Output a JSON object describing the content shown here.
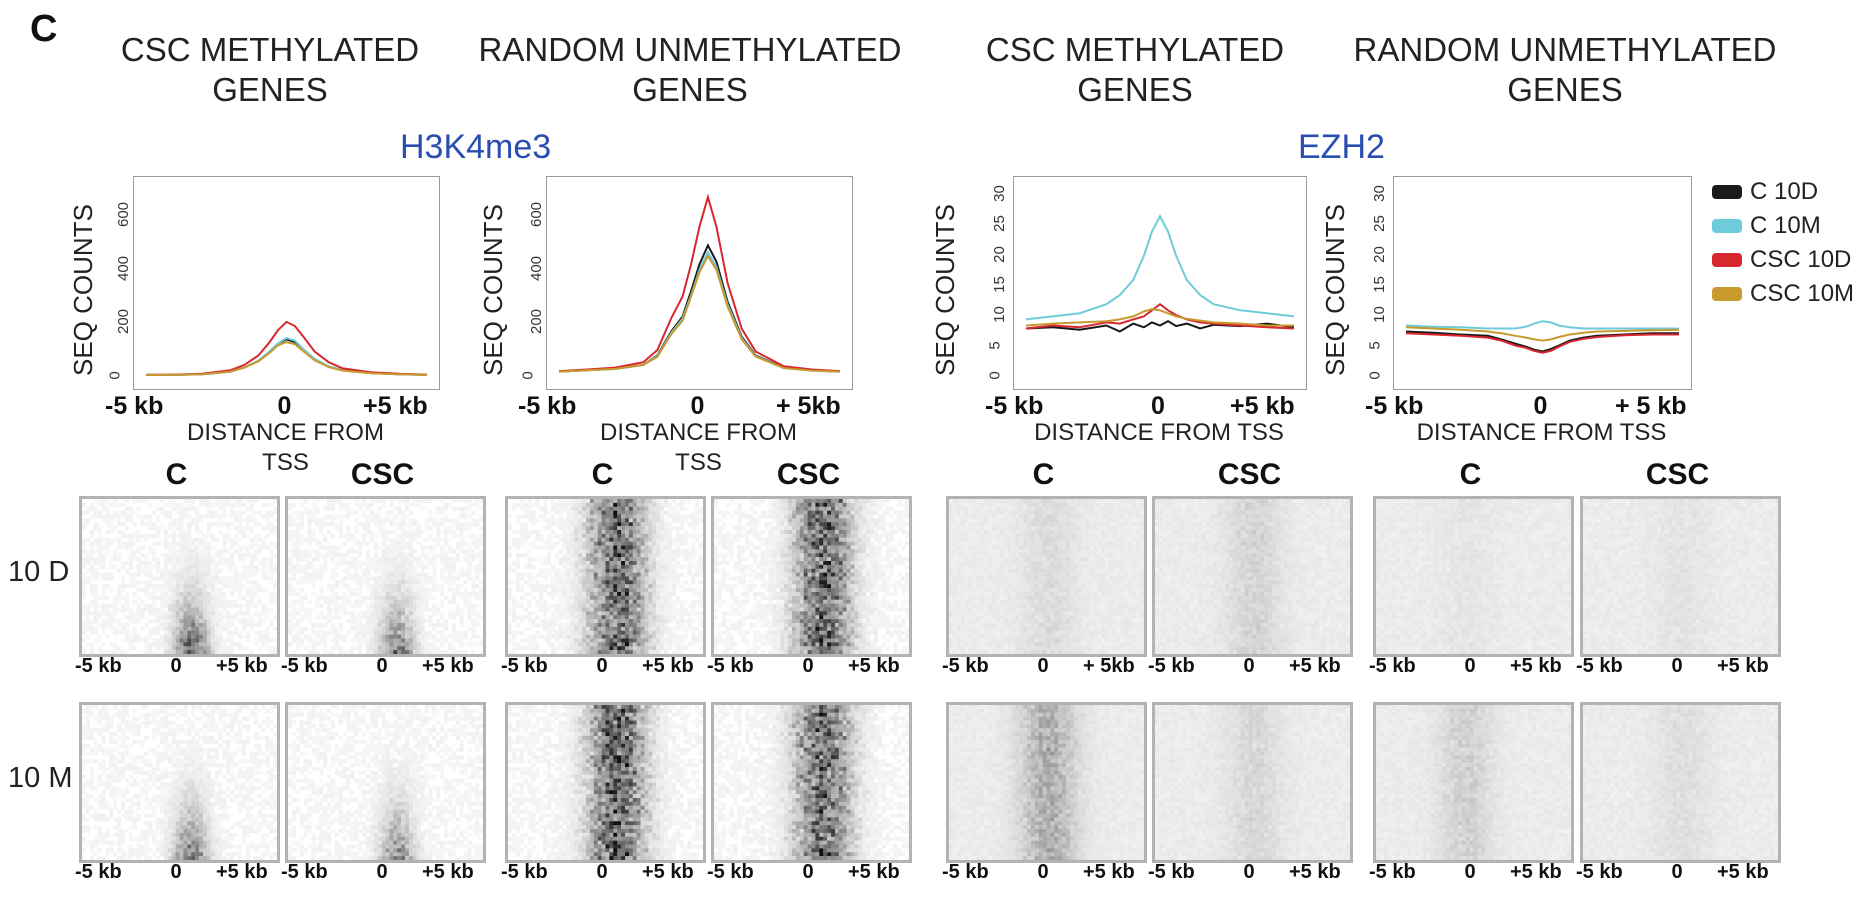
{
  "panel_letter": "C",
  "column_titles": [
    [
      "CSC METHYLATED",
      "GENES"
    ],
    [
      "RANDOM UNMETHYLATED",
      "GENES"
    ],
    [
      "CSC METHYLATED",
      "GENES"
    ],
    [
      "RANDOM UNMETHYLATED",
      "GENES"
    ]
  ],
  "mark_titles": [
    "H3K4me3",
    "EZH2"
  ],
  "legend": [
    {
      "label": "C 10D",
      "color": "#1a1a1a"
    },
    {
      "label": "C 10M",
      "color": "#6fcbdc"
    },
    {
      "label": "CSC 10D",
      "color": "#d8262e"
    },
    {
      "label": "CSC 10M",
      "color": "#c89a2e"
    }
  ],
  "heatmap_headers": [
    "C",
    "CSC"
  ],
  "row_labels": [
    "10 D",
    "10 M"
  ],
  "heatmap_ticks": {
    "left": "-5 kb",
    "mid": "0",
    "right": "+5 kb",
    "right_alt": "+ 5kb"
  },
  "chart_data": [
    {
      "type": "line",
      "mark": "H3K4me3",
      "title": "CSC METHYLATED GENES",
      "ylabel": "SEQ COUNTS",
      "xlabel": "DISTANCE FROM TSS",
      "xticks": [
        "-5 kb",
        "0",
        "+5 kb"
      ],
      "yticks": [
        "0",
        "200",
        "400",
        "600"
      ],
      "ylim": [
        0,
        700
      ],
      "x": [
        -5,
        -4,
        -3,
        -2,
        -1.5,
        -1,
        -0.6,
        -0.3,
        0,
        0.3,
        0.6,
        1,
        1.5,
        2,
        3,
        4,
        5
      ],
      "series": [
        {
          "name": "C 10D",
          "color": "#1a1a1a",
          "values": [
            8,
            8,
            10,
            20,
            35,
            60,
            95,
            125,
            140,
            130,
            100,
            65,
            38,
            25,
            15,
            10,
            8
          ]
        },
        {
          "name": "C 10M",
          "color": "#6fcbdc",
          "values": [
            8,
            8,
            10,
            20,
            35,
            60,
            95,
            125,
            145,
            135,
            104,
            68,
            40,
            26,
            15,
            10,
            8
          ]
        },
        {
          "name": "CSC 10D",
          "color": "#d8262e",
          "values": [
            8,
            9,
            12,
            25,
            45,
            80,
            130,
            175,
            205,
            190,
            150,
            95,
            55,
            32,
            18,
            12,
            9
          ]
        },
        {
          "name": "CSC 10M",
          "color": "#c89a2e",
          "values": [
            8,
            8,
            10,
            20,
            35,
            58,
            90,
            118,
            130,
            122,
            96,
            62,
            37,
            24,
            14,
            10,
            8
          ]
        }
      ]
    },
    {
      "type": "line",
      "mark": "H3K4me3",
      "title": "RANDOM UNMETHYLATED GENES",
      "ylabel": "SEQ COUNTS",
      "xlabel": "DISTANCE FROM TSS",
      "xticks": [
        "-5 kb",
        "0",
        "+ 5kb"
      ],
      "yticks": [
        "0",
        "200",
        "400",
        "600"
      ],
      "ylim": [
        0,
        700
      ],
      "x": [
        -5,
        -4,
        -3,
        -2,
        -1.5,
        -1,
        -0.6,
        -0.3,
        0,
        0.3,
        0.6,
        1,
        1.5,
        2,
        3,
        4,
        5
      ],
      "series": [
        {
          "name": "C 10D",
          "color": "#1a1a1a",
          "values": [
            20,
            25,
            30,
            45,
            80,
            170,
            225,
            320,
            420,
            490,
            430,
            280,
            150,
            80,
            35,
            25,
            20
          ]
        },
        {
          "name": "C 10M",
          "color": "#6fcbdc",
          "values": [
            20,
            25,
            30,
            45,
            78,
            165,
            218,
            305,
            400,
            465,
            410,
            270,
            145,
            78,
            34,
            24,
            20
          ]
        },
        {
          "name": "CSC 10D",
          "color": "#d8262e",
          "values": [
            22,
            28,
            35,
            55,
            100,
            220,
            300,
            420,
            560,
            670,
            560,
            350,
            180,
            95,
            40,
            28,
            22
          ]
        },
        {
          "name": "CSC 10M",
          "color": "#c89a2e",
          "values": [
            20,
            25,
            30,
            45,
            75,
            160,
            210,
            300,
            390,
            450,
            400,
            262,
            140,
            76,
            33,
            24,
            20
          ]
        }
      ]
    },
    {
      "type": "line",
      "mark": "EZH2",
      "title": "CSC METHYLATED GENES",
      "ylabel": "SEQ COUNTS",
      "xlabel": "DISTANCE FROM TSS",
      "xticks": [
        "-5 kb",
        "0",
        "+5 kb"
      ],
      "yticks": [
        "0",
        "5",
        "10",
        "15",
        "20",
        "25",
        "30"
      ],
      "ylim": [
        0,
        31
      ],
      "x": [
        -5,
        -4,
        -3,
        -2,
        -1.5,
        -1,
        -0.6,
        -0.3,
        0,
        0.3,
        0.6,
        1,
        1.5,
        2,
        3,
        4,
        5
      ],
      "series": [
        {
          "name": "C 10D",
          "color": "#1a1a1a",
          "values": [
            8,
            8.2,
            7.8,
            8.5,
            7.5,
            8.8,
            8.2,
            9,
            8.5,
            9.2,
            8.4,
            8.8,
            8,
            8.6,
            8.4,
            8.8,
            8.2
          ]
        },
        {
          "name": "C 10M",
          "color": "#6fcbdc",
          "values": [
            9.5,
            10,
            10.5,
            12,
            13.5,
            16,
            20,
            24,
            26.5,
            24,
            20,
            16,
            13.5,
            12,
            11,
            10.5,
            10
          ]
        },
        {
          "name": "CSC 10D",
          "color": "#d8262e",
          "values": [
            8,
            8.5,
            8.2,
            9,
            8.8,
            9.5,
            10,
            11,
            12,
            11,
            10.2,
            9.5,
            9,
            8.8,
            8.5,
            8.2,
            8
          ]
        },
        {
          "name": "CSC 10M",
          "color": "#c89a2e",
          "values": [
            8.5,
            8.8,
            9,
            9.2,
            9.5,
            10,
            10.8,
            11.2,
            11,
            10.5,
            10,
            9.6,
            9.3,
            9,
            8.8,
            8.5,
            8.5
          ]
        }
      ]
    },
    {
      "type": "line",
      "mark": "EZH2",
      "title": "RANDOM UNMETHYLATED GENES",
      "ylabel": "SEQ COUNTS",
      "xlabel": "DISTANCE FROM TSS",
      "xticks": [
        "-5 kb",
        "0",
        "+ 5 kb"
      ],
      "yticks": [
        "0",
        "5",
        "10",
        "15",
        "20",
        "25",
        "30"
      ],
      "ylim": [
        0,
        31
      ],
      "x": [
        -5,
        -4,
        -3,
        -2,
        -1.5,
        -1,
        -0.6,
        -0.3,
        0,
        0.3,
        0.6,
        1,
        1.5,
        2,
        3,
        4,
        5
      ],
      "series": [
        {
          "name": "C 10D",
          "color": "#1a1a1a",
          "values": [
            7.5,
            7.3,
            7,
            6.8,
            6.2,
            5.5,
            5,
            4.5,
            4.2,
            4.6,
            5.2,
            6,
            6.5,
            6.8,
            7,
            7.2,
            7.2
          ]
        },
        {
          "name": "C 10M",
          "color": "#6fcbdc",
          "values": [
            8.5,
            8.3,
            8.2,
            8,
            8,
            8,
            8.3,
            8.8,
            9.2,
            9,
            8.5,
            8.2,
            8,
            8,
            8,
            8,
            8
          ]
        },
        {
          "name": "CSC 10D",
          "color": "#d8262e",
          "values": [
            7.2,
            7,
            6.8,
            6.5,
            6,
            5.2,
            4.8,
            4.3,
            4,
            4.3,
            5,
            5.8,
            6.3,
            6.6,
            6.9,
            7,
            7
          ]
        },
        {
          "name": "CSC 10M",
          "color": "#c89a2e",
          "values": [
            8.2,
            8,
            7.8,
            7.5,
            7.2,
            6.8,
            6.5,
            6.2,
            6,
            6.2,
            6.6,
            7,
            7.3,
            7.5,
            7.6,
            7.7,
            7.8
          ]
        }
      ]
    }
  ]
}
